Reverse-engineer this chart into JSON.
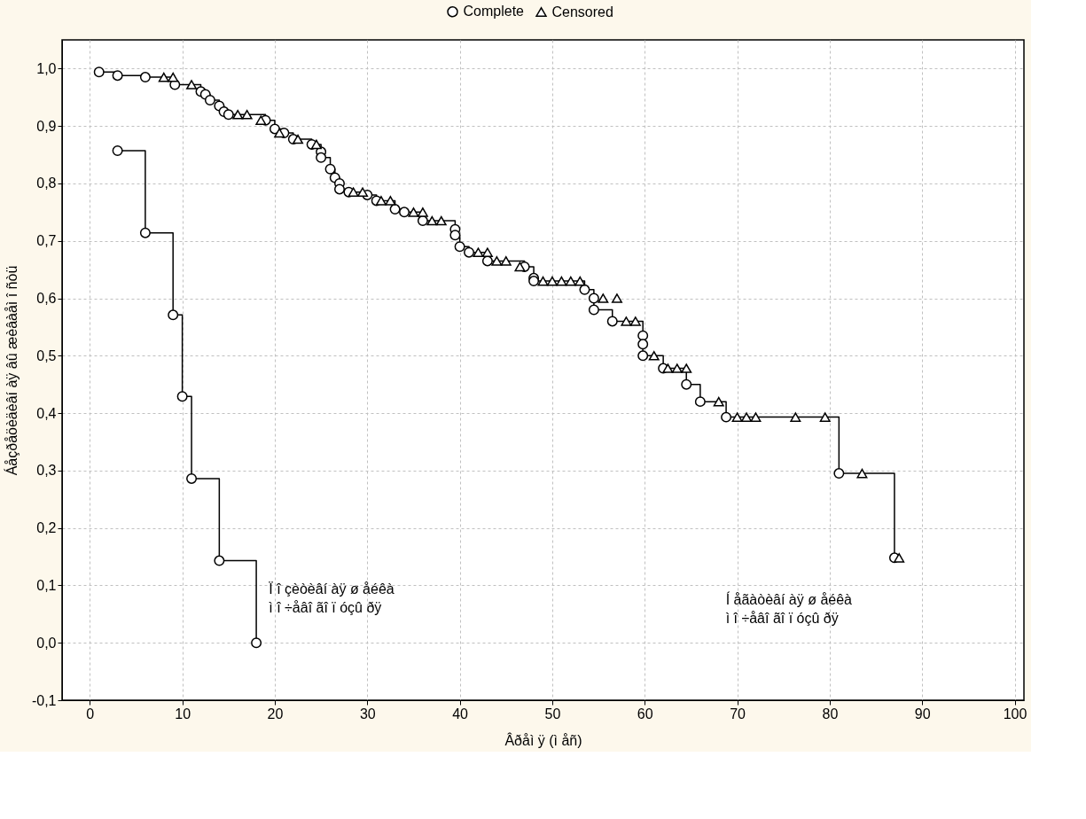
{
  "chart_data": {
    "type": "scatter",
    "xlabel": "Âðåì ÿ (ì åñ)",
    "ylabel": "Áåçðåöèäèâí àÿ âû æèâàåì î ñòü",
    "xlim": [
      -3,
      101
    ],
    "xticks": [
      0,
      10,
      20,
      30,
      40,
      50,
      60,
      70,
      80,
      90,
      100
    ],
    "ylim": [
      -0.1,
      1.05
    ],
    "yticks": [
      {
        "value": -0.1,
        "label": "-0,1"
      },
      {
        "value": 0,
        "label": "0,0"
      },
      {
        "value": 0.1,
        "label": "0,1"
      },
      {
        "value": 0.2,
        "label": "0,2"
      },
      {
        "value": 0.3,
        "label": "0,3"
      },
      {
        "value": 0.4,
        "label": "0,4"
      },
      {
        "value": 0.5,
        "label": "0,5"
      },
      {
        "value": 0.6,
        "label": "0,6"
      },
      {
        "value": 0.7,
        "label": "0,7"
      },
      {
        "value": 0.8,
        "label": "0,8"
      },
      {
        "value": 0.9,
        "label": "0,9"
      },
      {
        "value": 1.0,
        "label": "1,0"
      }
    ],
    "grid": true,
    "legend": "top",
    "line_style": "solid",
    "series": [
      {
        "type": "step",
        "color": "#000000",
        "marker": "none",
        "x": [
          3,
          6,
          9,
          10,
          11,
          14,
          18
        ],
        "values": [
          0.857,
          0.714,
          0.571,
          0.429,
          0.286,
          0.143,
          0.0
        ]
      },
      {
        "type": "step",
        "color": "#000000",
        "marker": "none",
        "x": [
          1,
          3,
          6,
          9.2,
          12,
          12.5,
          13,
          14,
          14.5,
          15,
          19,
          20,
          21,
          22,
          24,
          25,
          25,
          26,
          26.5,
          27,
          27,
          28,
          30,
          31,
          33,
          34,
          36,
          39.5,
          39.5,
          40,
          41,
          43,
          47,
          48,
          48,
          53.5,
          54.5,
          54.5,
          56.5,
          59.8,
          59.8,
          59.8,
          62,
          64.5,
          66,
          68.8,
          81,
          87,
          87.5
        ],
        "values": [
          0.994,
          0.988,
          0.985,
          0.972,
          0.96,
          0.955,
          0.945,
          0.935,
          0.925,
          0.92,
          0.91,
          0.895,
          0.888,
          0.877,
          0.868,
          0.855,
          0.845,
          0.825,
          0.81,
          0.8,
          0.79,
          0.785,
          0.78,
          0.77,
          0.755,
          0.75,
          0.735,
          0.72,
          0.71,
          0.69,
          0.68,
          0.665,
          0.655,
          0.635,
          0.63,
          0.615,
          0.6,
          0.58,
          0.56,
          0.535,
          0.52,
          0.5,
          0.478,
          0.45,
          0.42,
          0.393,
          0.295,
          0.148,
          0.148
        ]
      },
      {
        "name": "Complete",
        "color": "#000000",
        "marker": "circle",
        "x": [
          3,
          6,
          9,
          10,
          11,
          14,
          18,
          1,
          3,
          6,
          9.2,
          12,
          12.5,
          13,
          14,
          14.5,
          15,
          19,
          20,
          21,
          22,
          24,
          25,
          25,
          26,
          26.5,
          27,
          27,
          28,
          30,
          31,
          33,
          34,
          36,
          39.5,
          39.5,
          40,
          41,
          43,
          47,
          48,
          48,
          53.5,
          54.5,
          54.5,
          56.5,
          59.8,
          59.8,
          59.8,
          62,
          64.5,
          66,
          68.8,
          81,
          87
        ],
        "values": [
          0.857,
          0.714,
          0.571,
          0.429,
          0.286,
          0.143,
          0.0,
          0.994,
          0.988,
          0.985,
          0.972,
          0.96,
          0.955,
          0.945,
          0.935,
          0.925,
          0.92,
          0.91,
          0.895,
          0.888,
          0.877,
          0.868,
          0.855,
          0.845,
          0.825,
          0.81,
          0.8,
          0.79,
          0.785,
          0.78,
          0.77,
          0.755,
          0.75,
          0.735,
          0.72,
          0.71,
          0.69,
          0.68,
          0.665,
          0.655,
          0.635,
          0.63,
          0.615,
          0.6,
          0.58,
          0.56,
          0.535,
          0.52,
          0.5,
          0.478,
          0.45,
          0.42,
          0.393,
          0.295,
          0.148
        ]
      },
      {
        "name": "Censored",
        "color": "#000000",
        "marker": "triangle",
        "x": [
          8,
          9,
          11,
          16,
          17,
          18.5,
          20.5,
          22.5,
          24.5,
          28.5,
          29.5,
          31.5,
          32.5,
          35,
          36,
          37,
          38,
          42,
          43,
          44,
          45,
          46.5,
          49,
          50,
          51,
          52,
          53,
          55.5,
          57,
          58,
          59,
          61,
          62.5,
          63.5,
          64.5,
          68,
          70,
          71,
          72,
          76.3,
          79.5,
          83.5,
          87.5
        ],
        "values": [
          0.985,
          0.985,
          0.972,
          0.92,
          0.92,
          0.91,
          0.888,
          0.877,
          0.868,
          0.785,
          0.785,
          0.77,
          0.77,
          0.75,
          0.75,
          0.735,
          0.735,
          0.68,
          0.68,
          0.665,
          0.665,
          0.655,
          0.63,
          0.63,
          0.63,
          0.63,
          0.63,
          0.6,
          0.6,
          0.56,
          0.56,
          0.5,
          0.478,
          0.478,
          0.478,
          0.42,
          0.393,
          0.393,
          0.393,
          0.393,
          0.393,
          0.295,
          0.148
        ]
      }
    ],
    "annotations": [
      "Ï î çèòèâí àÿ ø åéêà\nì î ÷åâî ãî ï óçû ðÿ",
      "Í åãàòèâí àÿ ø åéêà\nì î ÷åâî ãî ï óçû ðÿ"
    ]
  }
}
